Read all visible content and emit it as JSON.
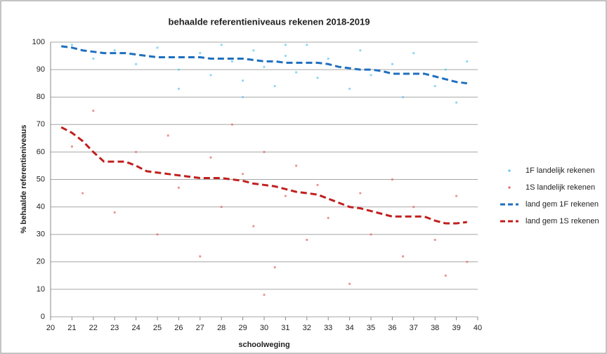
{
  "chart_data": {
    "type": "scatter",
    "title": "behaalde referentieniveaus rekenen 2018-2019",
    "x_label": "schoolweging",
    "y_label": "% behaalde referentieniveaus",
    "xlim": [
      20,
      40
    ],
    "xticks": [
      20,
      21,
      22,
      23,
      24,
      25,
      26,
      27,
      28,
      29,
      30,
      31,
      32,
      33,
      34,
      35,
      36,
      37,
      38,
      39,
      40
    ],
    "ylim": [
      0,
      100
    ],
    "yticks": [
      0,
      10,
      20,
      30,
      40,
      50,
      60,
      70,
      80,
      90,
      100
    ],
    "grid": true,
    "legend": "right",
    "series": [
      {
        "name": "1F landelijk rekenen",
        "kind": "points",
        "color": "#5cc4ec",
        "x": [
          21,
          22,
          23,
          24,
          25,
          26,
          27,
          27.5,
          28,
          28.5,
          29,
          29.5,
          30,
          30.5,
          31,
          31.5,
          32,
          32.5,
          33,
          34,
          34.5,
          35,
          36,
          36.5,
          37,
          38,
          38.5,
          39,
          39.5,
          26,
          29,
          31
        ],
        "values": [
          99,
          94,
          97,
          92,
          98,
          90,
          96,
          88,
          99,
          93,
          86,
          97,
          91,
          84,
          95,
          89,
          99,
          87,
          94,
          83,
          97,
          88,
          92,
          80,
          96,
          84,
          90,
          78,
          93,
          83,
          80,
          99
        ]
      },
      {
        "name": "1S landelijk rekenen",
        "kind": "points",
        "color": "#e06666",
        "x": [
          21,
          21.5,
          22,
          23,
          24,
          25,
          25.5,
          26,
          27,
          27.5,
          28,
          28.5,
          29,
          29.5,
          30,
          30.5,
          31,
          31.5,
          32,
          32.5,
          33,
          34,
          34.5,
          35,
          36,
          36.5,
          37,
          38,
          38.5,
          39,
          39.5,
          30
        ],
        "values": [
          62,
          45,
          75,
          38,
          60,
          30,
          66,
          47,
          22,
          58,
          40,
          70,
          52,
          33,
          60,
          18,
          44,
          55,
          28,
          48,
          36,
          12,
          45,
          30,
          50,
          22,
          40,
          28,
          15,
          44,
          20,
          8
        ]
      },
      {
        "name": "land gem 1F rekenen",
        "kind": "line",
        "color": "#1f6fbf",
        "x": [
          20.5,
          21,
          21.5,
          22,
          22.5,
          23,
          23.5,
          24,
          24.5,
          25,
          25.5,
          26,
          26.5,
          27,
          27.5,
          28,
          28.5,
          29,
          29.5,
          30,
          30.5,
          31,
          31.5,
          32,
          32.5,
          33,
          33.5,
          34,
          34.5,
          35,
          35.5,
          36,
          36.5,
          37,
          37.5,
          38,
          38.5,
          39,
          39.5
        ],
        "values": [
          98.5,
          98,
          97,
          96.5,
          96,
          96,
          96,
          95.5,
          95,
          94.5,
          94.5,
          94.5,
          94.5,
          94.5,
          94,
          94,
          94,
          94,
          93.5,
          93,
          93,
          92.5,
          92.5,
          92.5,
          92.5,
          92,
          91,
          90.5,
          90,
          90,
          89.5,
          88.5,
          88.5,
          88.5,
          88.5,
          87.5,
          86.5,
          85.5,
          85
        ]
      },
      {
        "name": "land gem 1S rekenen",
        "kind": "line",
        "color": "#c0201e",
        "x": [
          20.5,
          21,
          21.5,
          22,
          22.5,
          23,
          23.5,
          24,
          24.5,
          25,
          25.5,
          26,
          26.5,
          27,
          27.5,
          28,
          28.5,
          29,
          29.5,
          30,
          30.5,
          31,
          31.5,
          32,
          32.5,
          33,
          33.5,
          34,
          34.5,
          35,
          35.5,
          36,
          36.5,
          37,
          37.5,
          38,
          38.5,
          39,
          39.5
        ],
        "values": [
          69,
          67,
          64,
          60,
          56.5,
          56.5,
          56.5,
          55,
          53,
          52.5,
          52,
          51.5,
          51,
          50.5,
          50.5,
          50.5,
          50,
          49.5,
          48.5,
          48,
          47.5,
          46.5,
          45.5,
          45,
          44.5,
          43,
          41.5,
          40,
          39.5,
          38.5,
          37.5,
          36.5,
          36.5,
          36.5,
          36.5,
          35,
          34,
          34,
          34.5
        ]
      }
    ]
  }
}
